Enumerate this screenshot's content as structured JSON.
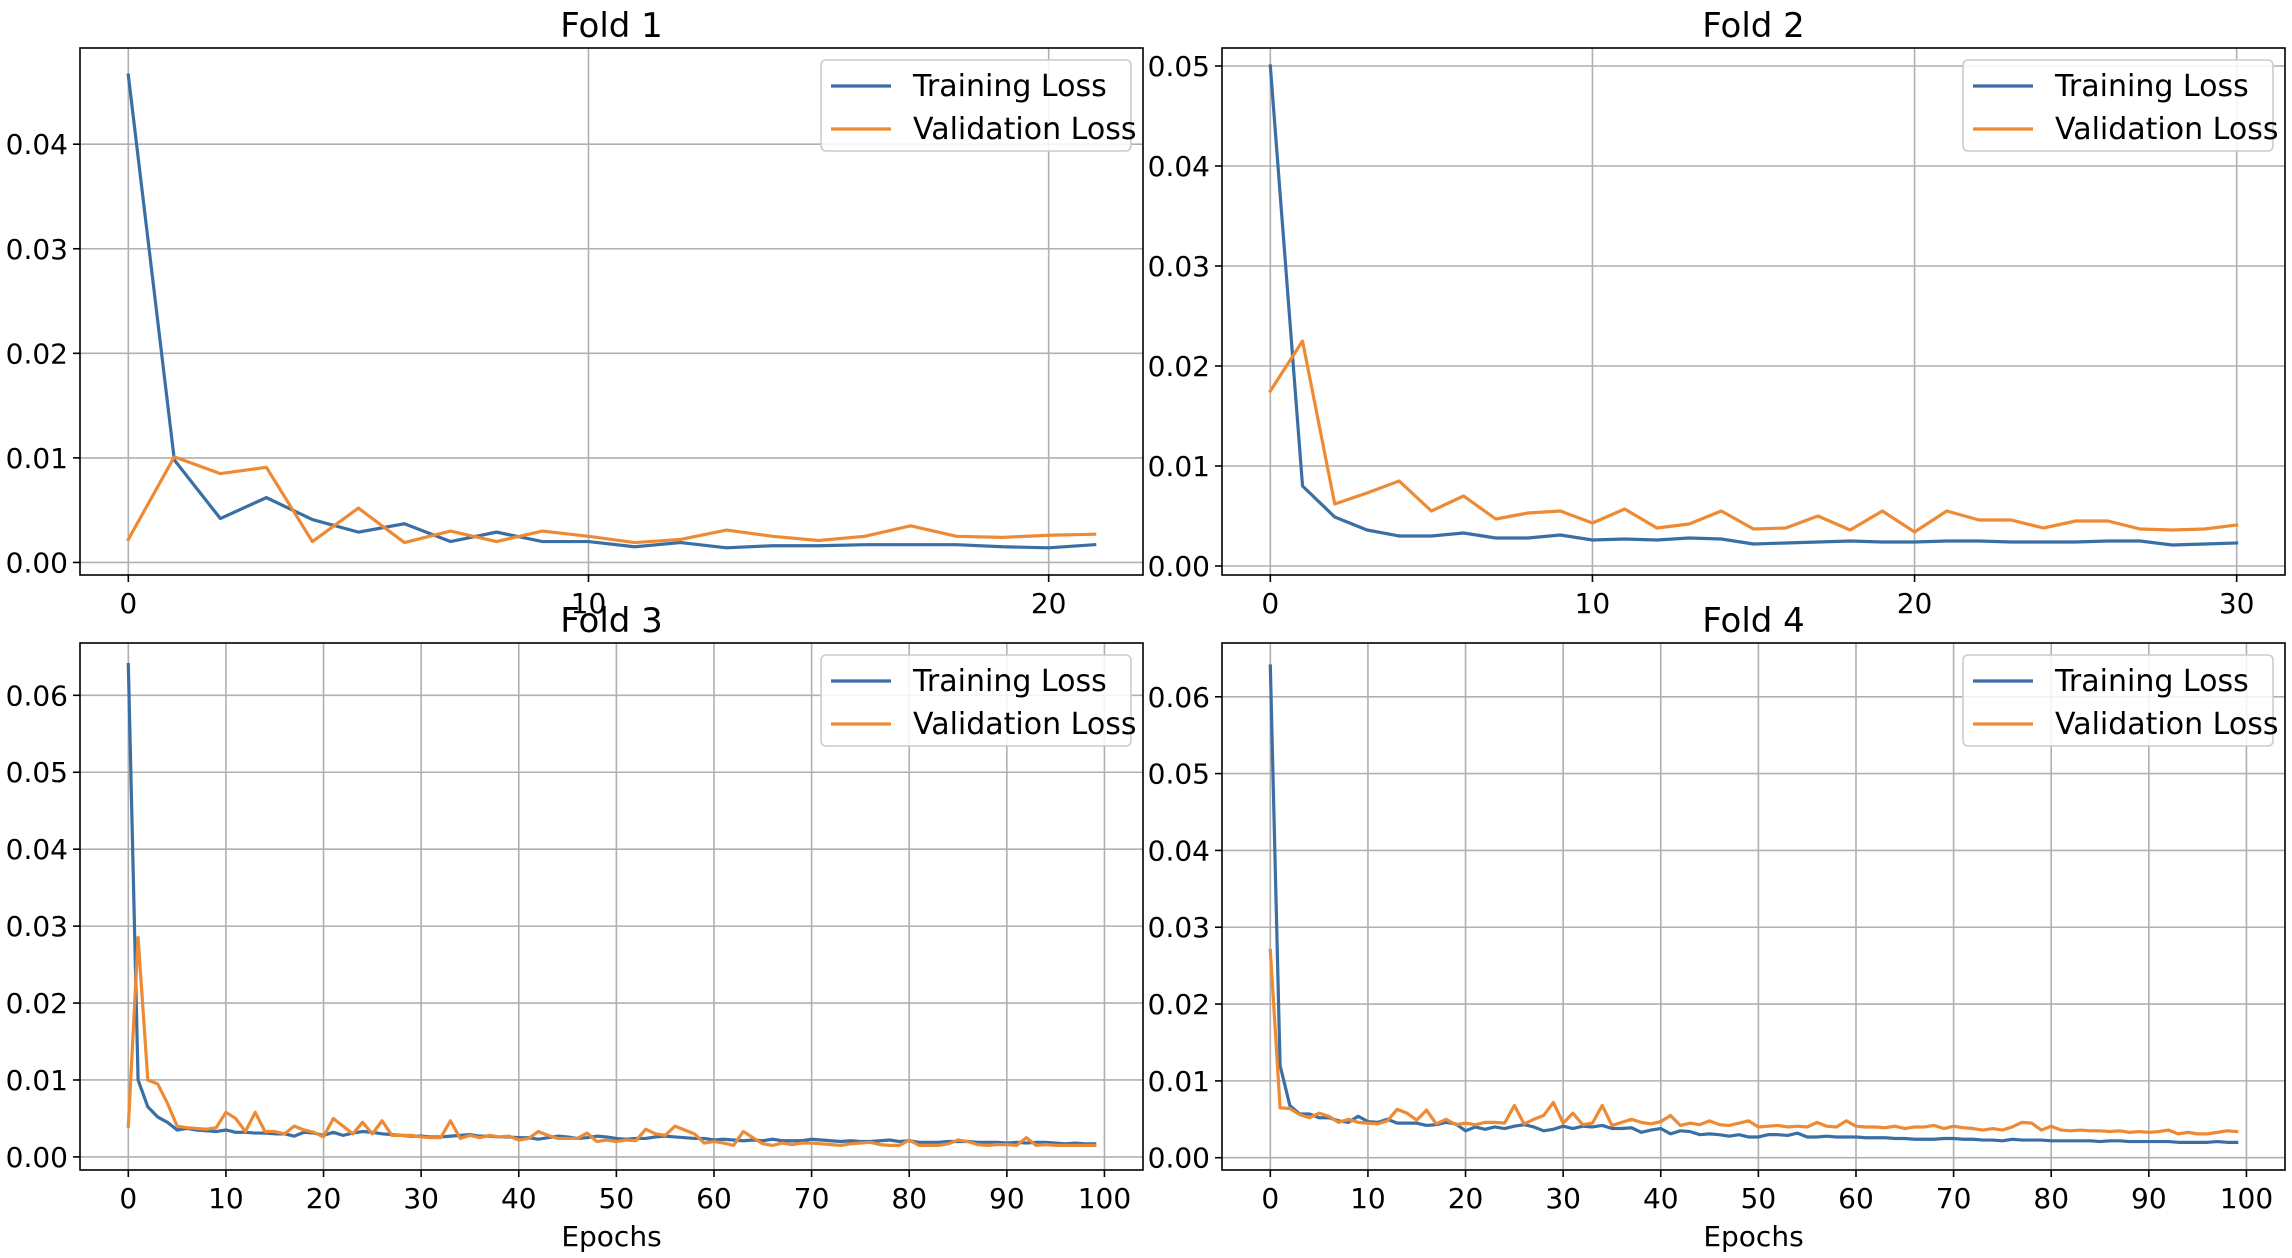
{
  "figure": {
    "background": "#ffffff"
  },
  "chart_data": [
    {
      "type": "line",
      "title": "Fold 1",
      "xlabel": "",
      "ylabel": "",
      "xlim": [
        -1.05,
        22.05
      ],
      "ylim": [
        -0.0012,
        0.0492
      ],
      "xticks": [
        0,
        10,
        20
      ],
      "yticks": [
        0.0,
        0.01,
        0.02,
        0.03,
        0.04
      ],
      "ytick_labels": [
        "0.00",
        "0.01",
        "0.02",
        "0.03",
        "0.04"
      ],
      "grid": true,
      "legend": "top-right",
      "series": [
        {
          "name": "Training Loss",
          "color": "#3a6fa5",
          "values": [
            0.0466,
            0.0098,
            0.0042,
            0.0062,
            0.0041,
            0.0029,
            0.0037,
            0.002,
            0.0029,
            0.002,
            0.002,
            0.0015,
            0.0019,
            0.0014,
            0.0016,
            0.0016,
            0.0017,
            0.0017,
            0.0017,
            0.0015,
            0.0014,
            0.0017
          ]
        },
        {
          "name": "Validation Loss",
          "color": "#ee8a33",
          "values": [
            0.0022,
            0.0101,
            0.0085,
            0.0091,
            0.002,
            0.0052,
            0.0019,
            0.003,
            0.002,
            0.003,
            0.0025,
            0.0019,
            0.0022,
            0.0031,
            0.0025,
            0.0021,
            0.0025,
            0.0035,
            0.0025,
            0.0024,
            0.0026,
            0.0027
          ]
        }
      ]
    },
    {
      "type": "line",
      "title": "Fold 2",
      "xlabel": "",
      "ylabel": "",
      "xlim": [
        -1.5,
        31.5
      ],
      "ylim": [
        -0.0009,
        0.0518
      ],
      "xticks": [
        0,
        10,
        20,
        30
      ],
      "yticks": [
        0.0,
        0.01,
        0.02,
        0.03,
        0.04,
        0.05
      ],
      "ytick_labels": [
        "0.00",
        "0.01",
        "0.02",
        "0.03",
        "0.04",
        "0.05"
      ],
      "grid": true,
      "legend": "top-right",
      "series": [
        {
          "name": "Training Loss",
          "color": "#3a6fa5",
          "values": [
            0.05,
            0.008,
            0.0049,
            0.0036,
            0.003,
            0.003,
            0.0033,
            0.0028,
            0.0028,
            0.0031,
            0.0026,
            0.0027,
            0.0026,
            0.0028,
            0.0027,
            0.0022,
            0.0023,
            0.0024,
            0.0025,
            0.0024,
            0.0024,
            0.0025,
            0.0025,
            0.0024,
            0.0024,
            0.0024,
            0.0025,
            0.0025,
            0.0021,
            0.0022,
            0.0023
          ]
        },
        {
          "name": "Validation Loss",
          "color": "#ee8a33",
          "values": [
            0.0175,
            0.0225,
            0.0062,
            0.0073,
            0.0085,
            0.0055,
            0.007,
            0.0047,
            0.0053,
            0.0055,
            0.0043,
            0.0057,
            0.0038,
            0.0042,
            0.0055,
            0.0037,
            0.0038,
            0.005,
            0.0036,
            0.0055,
            0.0034,
            0.0055,
            0.0046,
            0.0046,
            0.0038,
            0.0045,
            0.0045,
            0.0037,
            0.0036,
            0.0037,
            0.0041
          ]
        }
      ]
    },
    {
      "type": "line",
      "title": "Fold 3",
      "xlabel": "Epochs",
      "ylabel": "",
      "xlim": [
        -4.95,
        103.95
      ],
      "ylim": [
        -0.0017,
        0.0668
      ],
      "xticks": [
        0,
        10,
        20,
        30,
        40,
        50,
        60,
        70,
        80,
        90,
        100
      ],
      "yticks": [
        0.0,
        0.01,
        0.02,
        0.03,
        0.04,
        0.05,
        0.06
      ],
      "ytick_labels": [
        "0.00",
        "0.01",
        "0.02",
        "0.03",
        "0.04",
        "0.05",
        "0.06"
      ],
      "grid": true,
      "legend": "top-right",
      "series": [
        {
          "name": "Training Loss",
          "color": "#3a6fa5",
          "values": [
            0.064,
            0.01,
            0.0065,
            0.0052,
            0.0045,
            0.0035,
            0.0037,
            0.0035,
            0.0034,
            0.0033,
            0.0035,
            0.0032,
            0.0032,
            0.0031,
            0.0031,
            0.003,
            0.003,
            0.0027,
            0.0032,
            0.0031,
            0.0028,
            0.0032,
            0.0028,
            0.0031,
            0.0033,
            0.0032,
            0.003,
            0.0029,
            0.0028,
            0.0027,
            0.0027,
            0.0026,
            0.0026,
            0.0027,
            0.0028,
            0.0029,
            0.0027,
            0.0027,
            0.0026,
            0.0026,
            0.0025,
            0.0025,
            0.0023,
            0.0025,
            0.0027,
            0.0026,
            0.0024,
            0.0025,
            0.0027,
            0.0026,
            0.0024,
            0.0023,
            0.0024,
            0.0024,
            0.0026,
            0.0027,
            0.0026,
            0.0025,
            0.0024,
            0.0024,
            0.0022,
            0.0023,
            0.0022,
            0.0021,
            0.0022,
            0.0021,
            0.0023,
            0.0021,
            0.0021,
            0.0021,
            0.0023,
            0.0022,
            0.0021,
            0.002,
            0.0021,
            0.002,
            0.002,
            0.0021,
            0.0022,
            0.002,
            0.0021,
            0.0019,
            0.0019,
            0.0019,
            0.002,
            0.002,
            0.002,
            0.0019,
            0.0019,
            0.0019,
            0.0018,
            0.0019,
            0.0018,
            0.0019,
            0.0019,
            0.0018,
            0.0017,
            0.0018,
            0.0017,
            0.0017
          ]
        },
        {
          "name": "Validation Loss",
          "color": "#ee8a33",
          "values": [
            0.004,
            0.0285,
            0.01,
            0.0095,
            0.007,
            0.004,
            0.0038,
            0.0037,
            0.0036,
            0.0038,
            0.0058,
            0.005,
            0.0033,
            0.0058,
            0.0033,
            0.0033,
            0.003,
            0.004,
            0.0035,
            0.0032,
            0.0026,
            0.005,
            0.004,
            0.003,
            0.0045,
            0.003,
            0.0047,
            0.0028,
            0.0028,
            0.0028,
            0.0026,
            0.0025,
            0.0025,
            0.0047,
            0.0024,
            0.0028,
            0.0025,
            0.0028,
            0.0026,
            0.0027,
            0.0022,
            0.0024,
            0.0033,
            0.0028,
            0.0024,
            0.0024,
            0.0024,
            0.0031,
            0.002,
            0.0022,
            0.002,
            0.0022,
            0.0021,
            0.0036,
            0.003,
            0.0028,
            0.004,
            0.0035,
            0.003,
            0.0018,
            0.002,
            0.0018,
            0.0015,
            0.0033,
            0.0025,
            0.0017,
            0.0015,
            0.0018,
            0.0016,
            0.0018,
            0.0018,
            0.0017,
            0.0016,
            0.0015,
            0.0017,
            0.0018,
            0.0019,
            0.0016,
            0.0015,
            0.0015,
            0.0022,
            0.0015,
            0.0015,
            0.0015,
            0.0017,
            0.0022,
            0.002,
            0.0016,
            0.0015,
            0.0016,
            0.0016,
            0.0015,
            0.0025,
            0.0015,
            0.0016,
            0.0015,
            0.0015,
            0.0015,
            0.0015,
            0.0015
          ]
        }
      ]
    },
    {
      "type": "line",
      "title": "Fold 4",
      "xlabel": "Epochs",
      "ylabel": "",
      "xlim": [
        -4.95,
        103.95
      ],
      "ylim": [
        -0.0016,
        0.067
      ],
      "xticks": [
        0,
        10,
        20,
        30,
        40,
        50,
        60,
        70,
        80,
        90,
        100
      ],
      "yticks": [
        0.0,
        0.01,
        0.02,
        0.03,
        0.04,
        0.05,
        0.06
      ],
      "ytick_labels": [
        "0.00",
        "0.01",
        "0.02",
        "0.03",
        "0.04",
        "0.05",
        "0.06"
      ],
      "grid": true,
      "legend": "top-right",
      "series": [
        {
          "name": "Training Loss",
          "color": "#3a6fa5",
          "values": [
            0.064,
            0.012,
            0.0068,
            0.0057,
            0.0057,
            0.0052,
            0.0052,
            0.0048,
            0.0046,
            0.0054,
            0.0047,
            0.0046,
            0.005,
            0.0045,
            0.0045,
            0.0045,
            0.0042,
            0.0043,
            0.0046,
            0.0044,
            0.0035,
            0.004,
            0.0037,
            0.004,
            0.0038,
            0.0041,
            0.0043,
            0.004,
            0.0035,
            0.0037,
            0.0041,
            0.0038,
            0.0041,
            0.004,
            0.0042,
            0.0038,
            0.0038,
            0.0039,
            0.0033,
            0.0036,
            0.0038,
            0.0031,
            0.0035,
            0.0034,
            0.003,
            0.0031,
            0.003,
            0.0028,
            0.003,
            0.0027,
            0.0027,
            0.003,
            0.003,
            0.0029,
            0.0032,
            0.0027,
            0.0027,
            0.0028,
            0.0027,
            0.0027,
            0.0027,
            0.0026,
            0.0026,
            0.0026,
            0.0025,
            0.0025,
            0.0024,
            0.0024,
            0.0024,
            0.0025,
            0.0025,
            0.0024,
            0.0024,
            0.0023,
            0.0023,
            0.0022,
            0.0024,
            0.0023,
            0.0023,
            0.0023,
            0.0022,
            0.0022,
            0.0022,
            0.0022,
            0.0022,
            0.0021,
            0.0022,
            0.0022,
            0.0021,
            0.0021,
            0.0021,
            0.0021,
            0.0021,
            0.002,
            0.002,
            0.002,
            0.002,
            0.0021,
            0.002,
            0.002
          ]
        },
        {
          "name": "Validation Loss",
          "color": "#ee8a33",
          "values": [
            0.027,
            0.0065,
            0.0064,
            0.0056,
            0.0052,
            0.0058,
            0.0054,
            0.0046,
            0.005,
            0.0046,
            0.0045,
            0.0044,
            0.0048,
            0.0063,
            0.0058,
            0.0049,
            0.0062,
            0.0044,
            0.005,
            0.0043,
            0.0045,
            0.0043,
            0.0046,
            0.0046,
            0.0045,
            0.0068,
            0.0044,
            0.005,
            0.0055,
            0.0072,
            0.0045,
            0.0058,
            0.0043,
            0.0045,
            0.0068,
            0.0042,
            0.0046,
            0.005,
            0.0046,
            0.0044,
            0.0047,
            0.0055,
            0.0042,
            0.0045,
            0.0043,
            0.0048,
            0.0043,
            0.0042,
            0.0045,
            0.0048,
            0.004,
            0.0041,
            0.0042,
            0.004,
            0.0041,
            0.004,
            0.0046,
            0.0041,
            0.004,
            0.0048,
            0.0041,
            0.004,
            0.004,
            0.0039,
            0.0041,
            0.0038,
            0.004,
            0.004,
            0.0042,
            0.0038,
            0.0041,
            0.0039,
            0.0038,
            0.0036,
            0.0038,
            0.0036,
            0.004,
            0.0046,
            0.0045,
            0.0036,
            0.0041,
            0.0036,
            0.0035,
            0.0036,
            0.0035,
            0.0035,
            0.0034,
            0.0035,
            0.0033,
            0.0034,
            0.0033,
            0.0034,
            0.0036,
            0.0031,
            0.0033,
            0.0031,
            0.0031,
            0.0033,
            0.0035,
            0.0034
          ]
        }
      ]
    }
  ]
}
